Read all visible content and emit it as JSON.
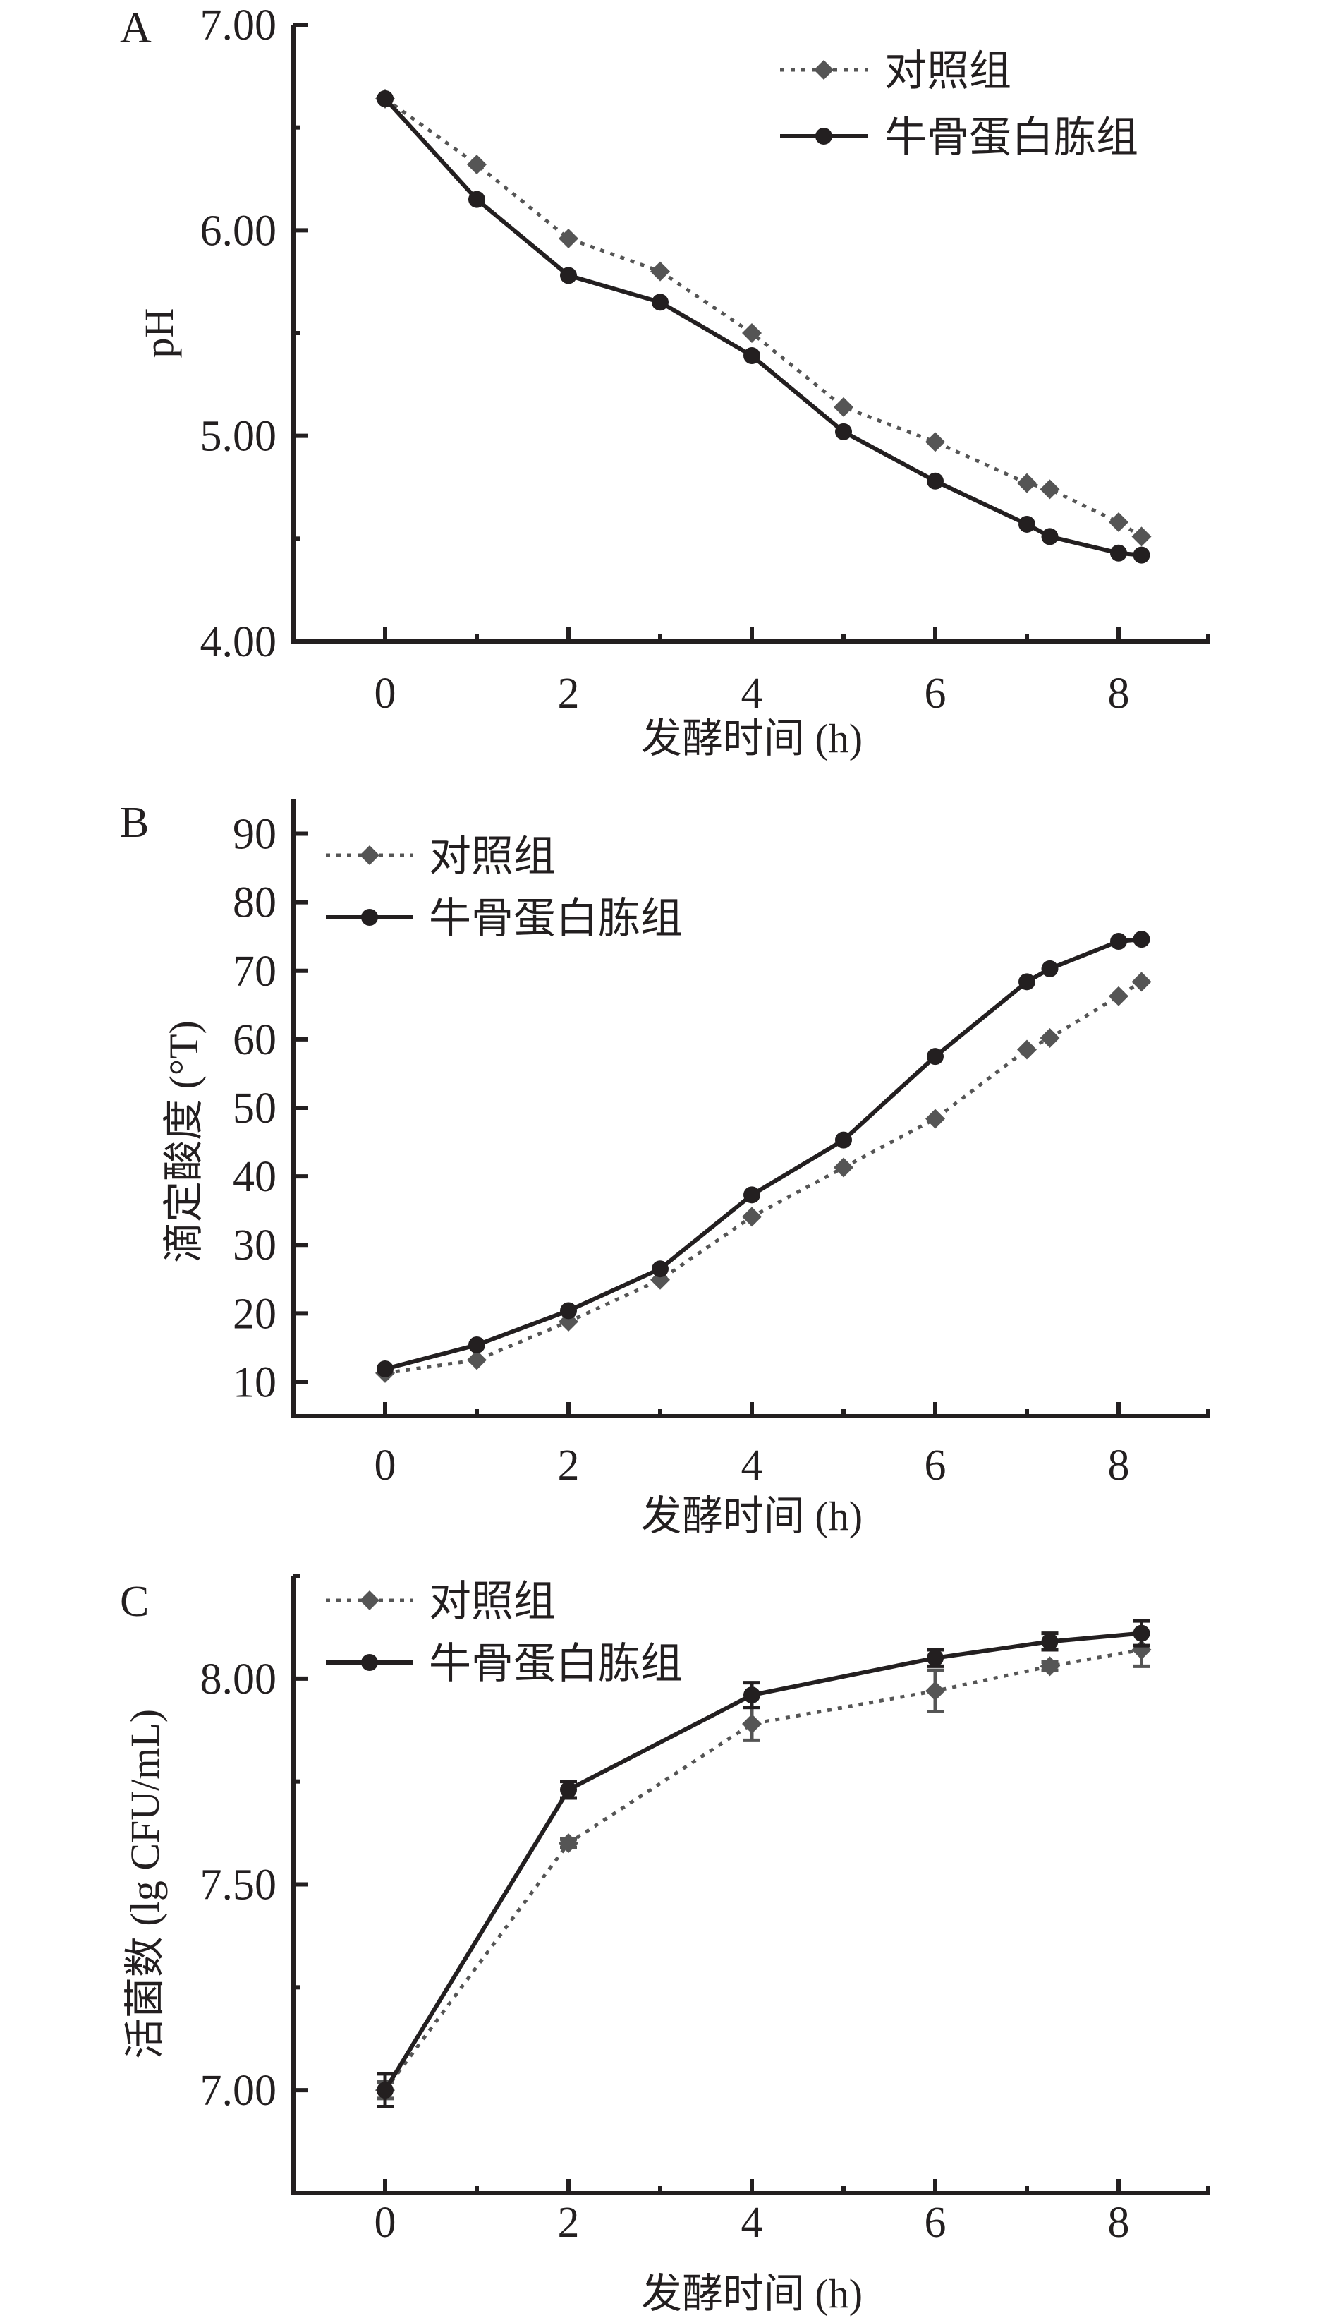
{
  "chart_data": [
    {
      "type": "line",
      "panel_label": "A",
      "xlabel": "发酵时间 (h)",
      "ylabel": "pH",
      "xlim": [
        -1,
        9
      ],
      "ylim": [
        4.0,
        7.0
      ],
      "xticks": [
        0,
        2,
        4,
        6,
        8
      ],
      "xminor": [
        1,
        3,
        5,
        7
      ],
      "yticks": [
        4.0,
        5.0,
        6.0,
        7.0
      ],
      "ytick_labels": [
        "4.00",
        "5.00",
        "6.00",
        "7.00"
      ],
      "yminor": [
        4.5,
        5.5,
        6.5
      ],
      "legend_position": "top-right",
      "x": [
        0,
        1,
        2,
        3,
        4,
        5,
        6,
        7,
        7.25,
        8,
        8.25
      ],
      "series": [
        {
          "name": "对照组",
          "style": "dotted-diamond",
          "color": "#555555",
          "values": [
            6.64,
            6.32,
            5.96,
            5.8,
            5.5,
            5.14,
            4.97,
            4.77,
            4.74,
            4.58,
            4.51
          ]
        },
        {
          "name": "牛骨蛋白胨组",
          "style": "solid-circle",
          "color": "#231f20",
          "values": [
            6.64,
            6.15,
            5.78,
            5.65,
            5.39,
            5.02,
            4.78,
            4.57,
            4.51,
            4.43,
            4.42
          ]
        }
      ]
    },
    {
      "type": "line",
      "panel_label": "B",
      "xlabel": "发酵时间 (h)",
      "ylabel": "滴定酸度 (°T)",
      "xlim": [
        -1,
        9
      ],
      "ylim": [
        5,
        95
      ],
      "xticks": [
        0,
        2,
        4,
        6,
        8
      ],
      "xminor": [
        1,
        3,
        5,
        7
      ],
      "yticks": [
        10,
        20,
        30,
        40,
        50,
        60,
        70,
        80,
        90
      ],
      "ytick_labels": [
        "10",
        "20",
        "30",
        "40",
        "50",
        "60",
        "70",
        "80",
        "90"
      ],
      "yminor": [],
      "legend_position": "top-left",
      "x": [
        0,
        1,
        2,
        3,
        4,
        5,
        6,
        7,
        7.25,
        8,
        8.25
      ],
      "series": [
        {
          "name": "对照组",
          "style": "dotted-diamond",
          "color": "#555555",
          "values": [
            11.3,
            13.2,
            18.8,
            24.9,
            34.1,
            41.3,
            48.4,
            58.5,
            60.2,
            66.3,
            68.4
          ]
        },
        {
          "name": "牛骨蛋白胨组",
          "style": "solid-circle",
          "color": "#231f20",
          "values": [
            11.9,
            15.4,
            20.4,
            26.5,
            37.3,
            45.3,
            57.5,
            68.4,
            70.3,
            74.3,
            74.6
          ]
        }
      ]
    },
    {
      "type": "line",
      "panel_label": "C",
      "xlabel": "发酵时间 (h)",
      "ylabel": "活菌数 (lg CFU/mL)",
      "xlim": [
        -1,
        9
      ],
      "ylim": [
        6.75,
        8.25
      ],
      "xticks": [
        0,
        2,
        4,
        6,
        8
      ],
      "xminor": [
        1,
        3,
        5,
        7
      ],
      "yticks": [
        7.0,
        7.5,
        8.0
      ],
      "ytick_labels": [
        "7.00",
        "7.50",
        "8.00"
      ],
      "yminor": [
        7.25,
        7.75,
        8.25
      ],
      "legend_position": "top-left",
      "x": [
        0,
        2,
        4,
        6,
        7.25,
        8.25
      ],
      "series": [
        {
          "name": "对照组",
          "style": "dotted-diamond",
          "color": "#555555",
          "values": [
            7.0,
            7.6,
            7.89,
            7.97,
            8.03,
            8.07
          ],
          "errors": [
            0.02,
            0.01,
            0.04,
            0.05,
            0.01,
            0.04
          ]
        },
        {
          "name": "牛骨蛋白胨组",
          "style": "solid-circle",
          "color": "#231f20",
          "values": [
            7.0,
            7.73,
            7.96,
            8.05,
            8.09,
            8.11
          ],
          "errors": [
            0.04,
            0.02,
            0.03,
            0.02,
            0.02,
            0.03
          ]
        }
      ]
    }
  ]
}
